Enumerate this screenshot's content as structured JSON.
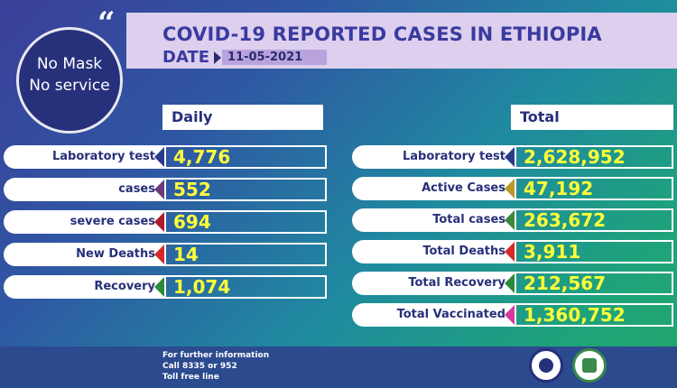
{
  "header": {
    "title": "COVID-19 REPORTED CASES IN ETHIOPIA",
    "date_label": "DATE",
    "date_value": "11-05-2021"
  },
  "badge": {
    "line1": "No Mask",
    "line2": "No service"
  },
  "daily": {
    "heading": "Daily",
    "rows": [
      {
        "label": "Laboratory test",
        "value": "4,776",
        "color": "#2a3a8a"
      },
      {
        "label": "cases",
        "value": "552",
        "color": "#6a3a7a"
      },
      {
        "label": "severe cases",
        "value": "694",
        "color": "#b01a2a"
      },
      {
        "label": "New Deaths",
        "value": "14",
        "color": "#d42a2a"
      },
      {
        "label": "Recovery",
        "value": "1,074",
        "color": "#2a8a3a"
      }
    ]
  },
  "total": {
    "heading": "Total",
    "rows": [
      {
        "label": "Laboratory test",
        "value": "2,628,952",
        "color": "#2a3a8a"
      },
      {
        "label": "Active Cases",
        "value": "47,192",
        "color": "#b89a2a"
      },
      {
        "label": "Total cases",
        "value": "263,672",
        "color": "#3a8a3a"
      },
      {
        "label": "Total Deaths",
        "value": "3,911",
        "color": "#d42a2a"
      },
      {
        "label": "Total Recovery",
        "value": "212,567",
        "color": "#2a8a3a"
      },
      {
        "label": "Total Vaccinated",
        "value": "1,360,752",
        "color": "#d43aa0"
      }
    ]
  },
  "footer": {
    "line1": "For further information",
    "line2": "Call 8335 or 952",
    "line3": "Toll free line",
    "logos": [
      "ministry-of-health-logo",
      "ephi-logo"
    ]
  }
}
